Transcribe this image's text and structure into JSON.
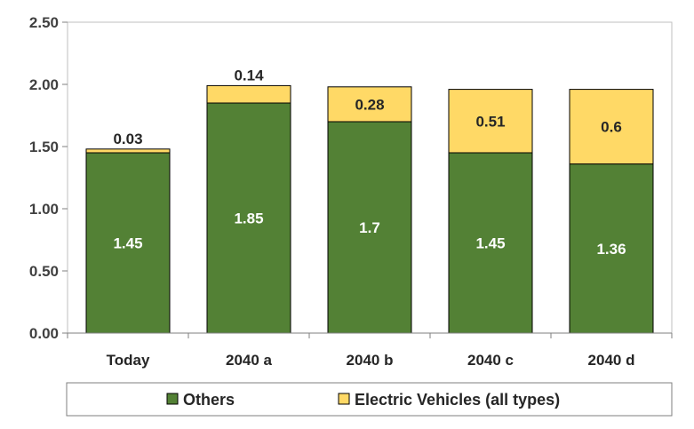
{
  "chart_data": {
    "type": "bar",
    "stacked": true,
    "categories": [
      "Today",
      "2040 a",
      "2040 b",
      "2040 c",
      "2040 d"
    ],
    "series": [
      {
        "name": "Others",
        "values": [
          1.45,
          1.85,
          1.7,
          1.45,
          1.36
        ],
        "labels": [
          "1.45",
          "1.85",
          "1.7",
          "1.45",
          "1.36"
        ],
        "color": "#538135"
      },
      {
        "name": "Electric Vehicles (all types)",
        "values": [
          0.03,
          0.14,
          0.28,
          0.51,
          0.6
        ],
        "labels": [
          "0.03",
          "0.14",
          "0.28",
          "0.51",
          "0.6"
        ],
        "color": "#FFD966"
      }
    ],
    "yticks": [
      "0.00",
      "0.50",
      "1.00",
      "1.50",
      "2.00",
      "2.50"
    ],
    "ylim": [
      0,
      2.5
    ],
    "grid": false,
    "legend_position": "bottom"
  }
}
